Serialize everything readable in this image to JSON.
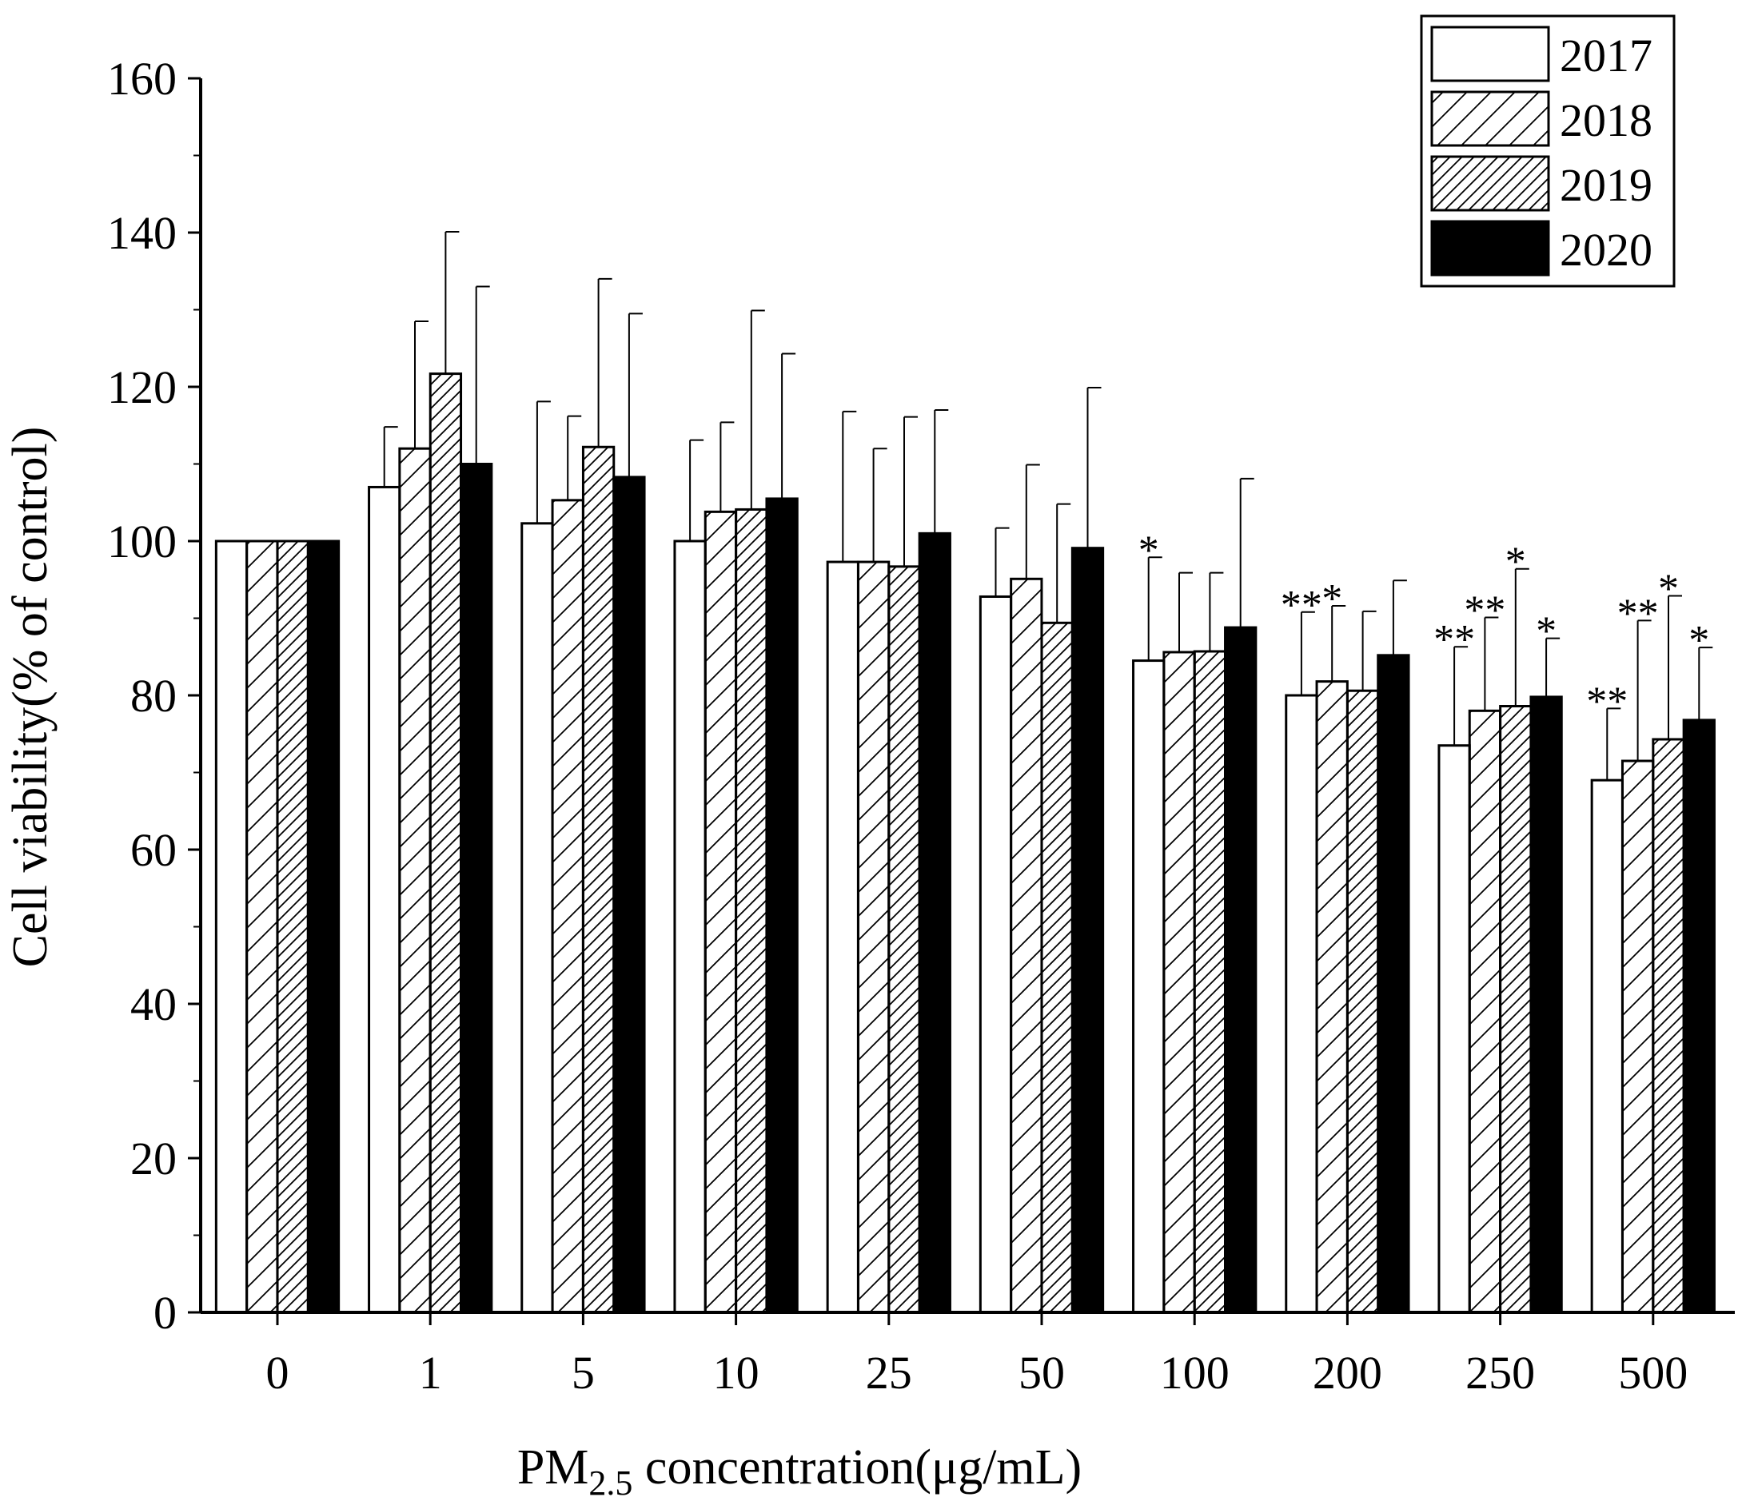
{
  "chart_data": {
    "type": "bar",
    "title": "",
    "xlabel_main": "PM",
    "xlabel_sub": "2.5",
    "xlabel_rest": " concentration(μg/mL)",
    "ylabel": "Cell viability(% of control)",
    "ylim": [
      0,
      160
    ],
    "yticks": [
      "0",
      "20",
      "40",
      "60",
      "80",
      "100",
      "120",
      "140",
      "160"
    ],
    "categories": [
      "0",
      "1",
      "5",
      "10",
      "25",
      "50",
      "100",
      "200",
      "250",
      "500"
    ],
    "legend_position": "top-right",
    "series": [
      {
        "name": "2017",
        "fill": "white",
        "values": [
          100,
          107,
          102.3,
          100,
          97.3,
          92.8,
          84.5,
          80,
          73.5,
          69
        ],
        "errors": [
          0,
          7.8,
          15.8,
          13.1,
          19.5,
          8.9,
          13.4,
          10.8,
          12.8,
          9.3
        ],
        "sig": [
          "",
          "",
          "",
          "",
          "",
          "",
          "*",
          "**",
          "**",
          "**"
        ]
      },
      {
        "name": "2018",
        "fill": "hatch",
        "values": [
          100,
          112,
          105.3,
          103.8,
          97.3,
          95.1,
          85.6,
          81.8,
          78,
          71.5
        ],
        "errors": [
          0,
          16.5,
          10.9,
          11.6,
          14.7,
          14.8,
          10.3,
          9.8,
          12.1,
          18.2
        ],
        "sig": [
          "",
          "",
          "",
          "",
          "",
          "",
          "",
          "*",
          "**",
          "**"
        ]
      },
      {
        "name": "2019",
        "fill": "dense-hatch",
        "values": [
          100,
          121.7,
          112.2,
          104.1,
          96.7,
          89.4,
          85.7,
          80.6,
          78.6,
          74.3
        ],
        "errors": [
          0,
          18.4,
          21.8,
          25.8,
          19.4,
          15.4,
          10.2,
          10.3,
          17.8,
          18.6
        ],
        "sig": [
          "",
          "",
          "",
          "",
          "",
          "",
          "",
          "",
          "*",
          "*"
        ]
      },
      {
        "name": "2020",
        "fill": "black",
        "values": [
          100,
          110,
          108.3,
          105.5,
          101,
          99.1,
          88.8,
          85.2,
          79.8,
          76.8
        ],
        "errors": [
          0,
          23,
          21.2,
          18.8,
          16,
          20.8,
          19.3,
          9.7,
          7.6,
          9.4
        ],
        "sig": [
          "",
          "",
          "",
          "",
          "",
          "",
          "",
          "",
          "*",
          "*"
        ]
      }
    ]
  }
}
